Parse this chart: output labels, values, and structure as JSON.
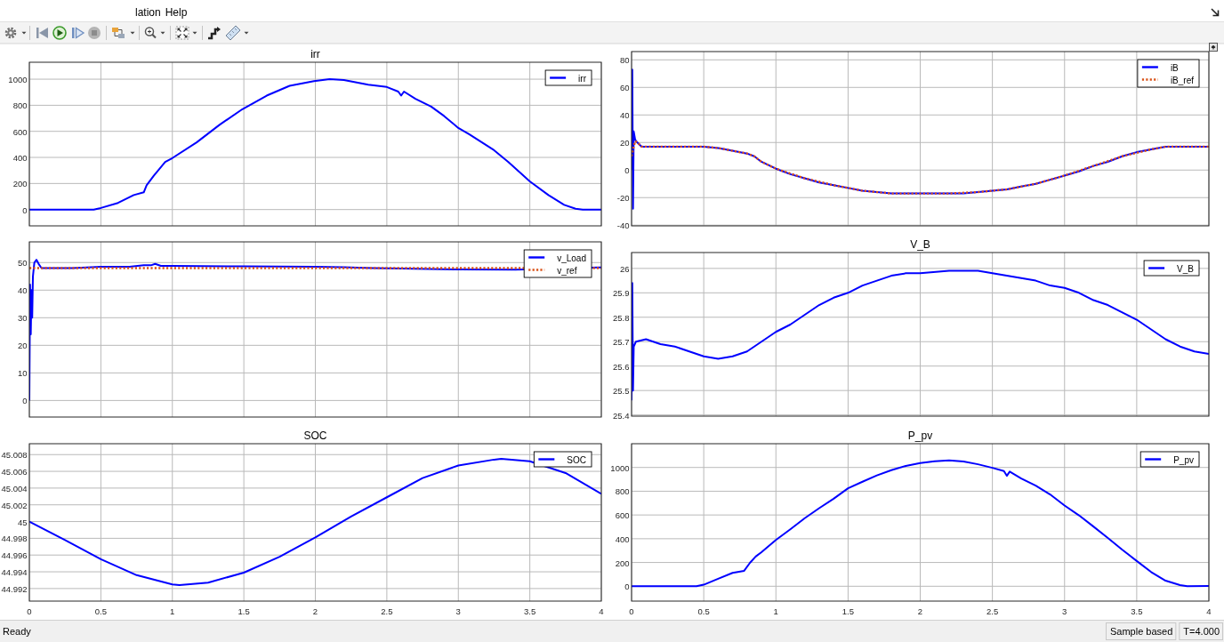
{
  "chart_data": [
    {
      "type": "line",
      "title": "irr",
      "xlim": [
        0,
        4
      ],
      "xticks": [
        0,
        0.5,
        1,
        1.5,
        2,
        2.5,
        3,
        3.5,
        4
      ],
      "ylim": [
        -125,
        1130
      ],
      "yticks": [
        0,
        200,
        400,
        600,
        800,
        1000
      ],
      "grid": true,
      "legend": "top right",
      "tick_labels": "y",
      "series": [
        {
          "name": "irr",
          "color": "#0000ff",
          "x": [
            0,
            0.45,
            0.5,
            0.62,
            0.73,
            0.8,
            0.82,
            0.87,
            0.95,
            1,
            1.17,
            1.33,
            1.49,
            1.66,
            1.82,
            1.99,
            2.1,
            2.2,
            2.37,
            2.5,
            2.58,
            2.6,
            2.62,
            2.7,
            2.81,
            2.9,
            3,
            3.08,
            3.25,
            3.35,
            3.5,
            3.63,
            3.74,
            3.82,
            3.87,
            4
          ],
          "values": [
            0,
            0,
            12,
            51,
            111,
            132,
            186,
            260,
            365,
            395,
            515,
            650,
            770,
            874,
            949,
            985,
            1000,
            994,
            958,
            940,
            905,
            874,
            905,
            850,
            790,
            718,
            626,
            575,
            455,
            365,
            216,
            111,
            36,
            6,
            0,
            0
          ]
        }
      ]
    },
    {
      "type": "line",
      "xlim": [
        0,
        4
      ],
      "xticks": [
        0,
        0.5,
        1,
        1.5,
        2,
        2.5,
        3,
        3.5,
        4
      ],
      "ylim": [
        -40.5,
        86
      ],
      "yticks": [
        -40,
        -20,
        0,
        20,
        40,
        60,
        80
      ],
      "grid": true,
      "legend": "top right",
      "tick_labels": "y",
      "series": [
        {
          "name": "iB",
          "color": "#0000ff",
          "x": [
            0,
            0.005,
            0.01,
            0.015,
            0.025,
            0.04,
            0.07,
            0.3,
            0.5,
            0.6,
            0.7,
            0.8,
            0.85,
            0.9,
            1,
            1.1,
            1.2,
            1.3,
            1.4,
            1.5,
            1.6,
            1.7,
            1.8,
            1.9,
            2,
            2.1,
            2.2,
            2.3,
            2.4,
            2.5,
            2.6,
            2.7,
            2.8,
            2.9,
            3,
            3.1,
            3.2,
            3.3,
            3.4,
            3.5,
            3.6,
            3.7,
            3.8,
            4
          ],
          "values": [
            0,
            73,
            -28,
            28,
            22,
            20,
            17,
            17,
            17,
            16,
            14,
            12,
            10,
            6,
            1,
            -3,
            -6,
            -9,
            -11,
            -13,
            -15,
            -16,
            -17,
            -17,
            -17,
            -17,
            -17,
            -17,
            -16,
            -15,
            -14,
            -12,
            -10,
            -7,
            -4,
            -1,
            3,
            6,
            10,
            13,
            15,
            17,
            17,
            17
          ]
        },
        {
          "name": "iB_ref",
          "color": "#d95319",
          "line_style": "dotted",
          "x": [
            0,
            0.01,
            0.025,
            0.04,
            0.07,
            0.5,
            0.6,
            0.7,
            0.8,
            0.85,
            0.9,
            1,
            1.2,
            1.4,
            1.6,
            1.8,
            2,
            2.2,
            2.4,
            2.6,
            2.8,
            3,
            3.2,
            3.4,
            3.6,
            3.7,
            3.8,
            4
          ],
          "values": [
            10,
            15,
            21,
            20,
            17,
            17,
            16,
            14,
            12,
            10,
            6,
            1,
            -6,
            -11,
            -15,
            -17,
            -17,
            -17,
            -16,
            -14,
            -10,
            -4,
            3,
            10,
            15,
            17,
            17,
            17
          ]
        }
      ]
    },
    {
      "type": "line",
      "xlim": [
        0,
        4
      ],
      "xticks": [
        0,
        0.5,
        1,
        1.5,
        2,
        2.5,
        3,
        3.5,
        4
      ],
      "ylim": [
        -6,
        57.5
      ],
      "yticks": [
        0,
        10,
        20,
        30,
        40,
        50
      ],
      "grid": true,
      "legend": "top right",
      "tick_labels": "y",
      "series": [
        {
          "name": "v_Load",
          "color": "#0000ff",
          "x": [
            0,
            0.005,
            0.01,
            0.015,
            0.02,
            0.025,
            0.035,
            0.05,
            0.065,
            0.085,
            0.3,
            0.5,
            0.7,
            0.8,
            0.85,
            0.88,
            0.92,
            1,
            1.5,
            2,
            2.2,
            2.4,
            2.6,
            3,
            3.4,
            3.98,
            4
          ],
          "values": [
            0,
            42,
            24,
            40,
            30,
            45,
            50,
            51,
            49.5,
            48,
            48,
            48.5,
            48.5,
            49,
            49,
            49.5,
            48.8,
            48.8,
            48.6,
            48.5,
            48.3,
            48,
            47.8,
            47.5,
            47.4,
            48.2,
            48.2
          ]
        },
        {
          "name": "v_ref",
          "color": "#d95319",
          "line_style": "dotted",
          "x": [
            0,
            4
          ],
          "values": [
            48,
            48
          ]
        }
      ]
    },
    {
      "type": "line",
      "title": "V_B",
      "xlim": [
        0,
        4
      ],
      "xticks": [
        0,
        0.5,
        1,
        1.5,
        2,
        2.5,
        3,
        3.5,
        4
      ],
      "ylim": [
        25.395,
        26.065
      ],
      "yticks": [
        25.4,
        25.5,
        25.6,
        25.7,
        25.8,
        25.9,
        26
      ],
      "grid": true,
      "legend": "top right",
      "tick_labels": "y",
      "series": [
        {
          "name": "V_B",
          "color": "#0000ff",
          "x": [
            0,
            0.005,
            0.01,
            0.015,
            0.03,
            0.1,
            0.2,
            0.3,
            0.4,
            0.5,
            0.6,
            0.7,
            0.8,
            0.9,
            1,
            1.1,
            1.2,
            1.3,
            1.4,
            1.5,
            1.6,
            1.7,
            1.8,
            1.9,
            2,
            2.2,
            2.4,
            2.5,
            2.6,
            2.7,
            2.8,
            2.9,
            3,
            3.1,
            3.2,
            3.3,
            3.4,
            3.5,
            3.6,
            3.7,
            3.8,
            3.9,
            4
          ],
          "values": [
            25.46,
            25.94,
            25.5,
            25.68,
            25.7,
            25.71,
            25.69,
            25.68,
            25.66,
            25.64,
            25.63,
            25.64,
            25.66,
            25.7,
            25.74,
            25.77,
            25.81,
            25.85,
            25.88,
            25.9,
            25.93,
            25.95,
            25.97,
            25.98,
            25.98,
            25.99,
            25.99,
            25.98,
            25.97,
            25.96,
            25.95,
            25.93,
            25.92,
            25.9,
            25.87,
            25.85,
            25.82,
            25.79,
            25.75,
            25.71,
            25.68,
            25.66,
            25.65
          ]
        }
      ]
    },
    {
      "type": "line",
      "title": "SOC",
      "xlim": [
        0,
        4
      ],
      "xticks": [
        0,
        0.5,
        1,
        1.5,
        2,
        2.5,
        3,
        3.5,
        4
      ],
      "ylim": [
        44.9905,
        45.0093
      ],
      "yticks": [
        44.992,
        44.994,
        44.996,
        44.998,
        45,
        45.002,
        45.004,
        45.006,
        45.008
      ],
      "grid": true,
      "legend": "top right",
      "series": [
        {
          "name": "SOC",
          "color": "#0000ff",
          "x": [
            0,
            0.25,
            0.5,
            0.75,
            1,
            1.05,
            1.25,
            1.5,
            1.75,
            2,
            2.25,
            2.5,
            2.75,
            3,
            3.25,
            3.3,
            3.5,
            3.75,
            4
          ],
          "values": [
            45,
            44.9978,
            44.9955,
            44.9936,
            44.9925,
            44.9924,
            44.9927,
            44.9939,
            44.9958,
            44.9981,
            45.0006,
            45.0029,
            45.0052,
            45.0067,
            45.0074,
            45.0075,
            45.0072,
            45.0058,
            45.0033
          ]
        }
      ]
    },
    {
      "type": "line",
      "title": "P_pv",
      "xlim": [
        0,
        4
      ],
      "xticks": [
        0,
        0.5,
        1,
        1.5,
        2,
        2.5,
        3,
        3.5,
        4
      ],
      "ylim": [
        -125,
        1200
      ],
      "yticks": [
        0,
        200,
        400,
        600,
        800,
        1000
      ],
      "grid": true,
      "legend": "top right",
      "series": [
        {
          "name": "P_pv",
          "color": "#0000ff",
          "x": [
            0,
            0.45,
            0.5,
            0.6,
            0.7,
            0.78,
            0.82,
            0.86,
            0.9,
            1,
            1.1,
            1.2,
            1.3,
            1.4,
            1.5,
            1.6,
            1.7,
            1.8,
            1.9,
            2,
            2.1,
            2.2,
            2.3,
            2.4,
            2.5,
            2.58,
            2.6,
            2.62,
            2.7,
            2.8,
            2.9,
            3,
            3.1,
            3.2,
            3.3,
            3.4,
            3.5,
            3.6,
            3.7,
            3.8,
            3.85,
            4
          ],
          "values": [
            0,
            0,
            13,
            63,
            113,
            130,
            197,
            250,
            287,
            390,
            480,
            573,
            657,
            737,
            825,
            880,
            933,
            977,
            1013,
            1037,
            1053,
            1060,
            1050,
            1027,
            997,
            970,
            930,
            965,
            907,
            847,
            773,
            680,
            597,
            503,
            407,
            307,
            213,
            120,
            47,
            10,
            0,
            3
          ]
        }
      ]
    },
    {
      "type": "other",
      "annotations": [
        "lation",
        "Help",
        "Ready",
        "Sample based",
        "T=4.000"
      ]
    }
  ]
}
